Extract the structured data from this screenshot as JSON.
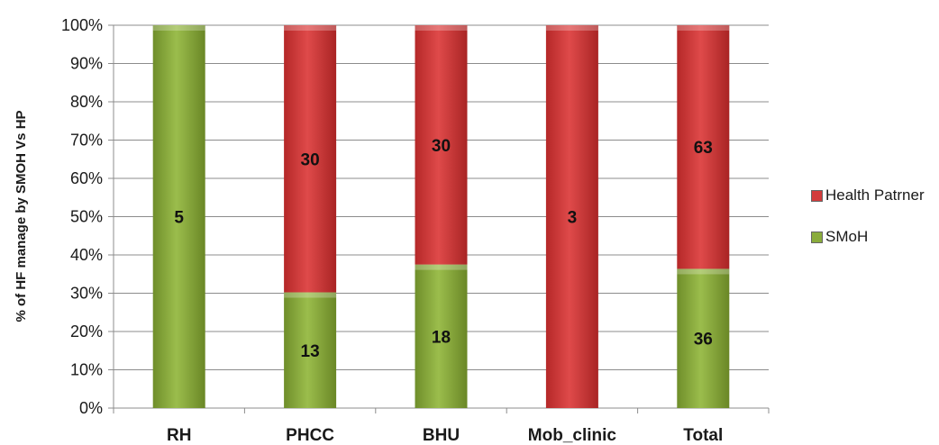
{
  "chart_data": {
    "type": "bar",
    "stacked": true,
    "percent_stacked": true,
    "categories": [
      "RH",
      "PHCC",
      "BHU",
      "Mob_clinic",
      "Total"
    ],
    "series": [
      {
        "name": "SMoH",
        "color": "#8aac3c",
        "values": [
          5,
          13,
          18,
          0,
          36
        ]
      },
      {
        "name": "Health Patrner",
        "color": "#d23c3c",
        "values": [
          0,
          30,
          30,
          3,
          63
        ]
      }
    ],
    "ylabel": "% of HF manage by SMOH Vs HP",
    "xlabel": "",
    "ylim": [
      0,
      100
    ],
    "yticks": [
      "0%",
      "10%",
      "20%",
      "30%",
      "40%",
      "50%",
      "60%",
      "70%",
      "80%",
      "90%",
      "100%"
    ],
    "grid": true,
    "legend_position": "right",
    "legend_order": [
      "Health Patrner",
      "SMoH"
    ]
  }
}
